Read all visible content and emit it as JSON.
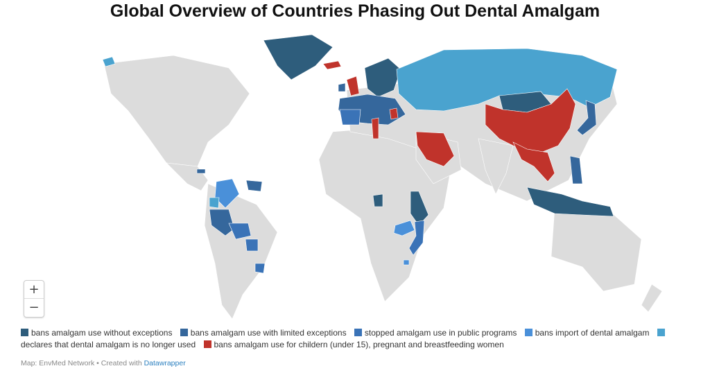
{
  "title": "Global Overview of Countries Phasing Out Dental Amalgam",
  "colors": {
    "background_land": "#dcdcdc",
    "no_exceptions": "#2e5d7c",
    "limited_exceptions": "#35679c",
    "public_programs": "#3a73b7",
    "import_ban": "#4a90d9",
    "no_longer_used": "#4aa3cf",
    "children_ban": "#c0332b"
  },
  "legend": [
    {
      "label": "bans amalgam use without exceptions",
      "color": "#2e5d7c"
    },
    {
      "label": "bans amalgam use with limited exceptions",
      "color": "#35679c"
    },
    {
      "label": "stopped amalgam use in public programs",
      "color": "#3a73b7"
    },
    {
      "label": "bans import of dental amalgam",
      "color": "#4a90d9"
    },
    {
      "label": "declares that dental amalgam is no longer used",
      "color": "#4aa3cf"
    },
    {
      "label": "bans amalgam use for childern (under 15), pregnant and breastfeeding women",
      "color": "#c0332b"
    }
  ],
  "zoom": {
    "in_label": "+",
    "out_label": "−"
  },
  "footer": {
    "prefix": "Map: EnvMed Network • Created with ",
    "link": "Datawrapper"
  }
}
